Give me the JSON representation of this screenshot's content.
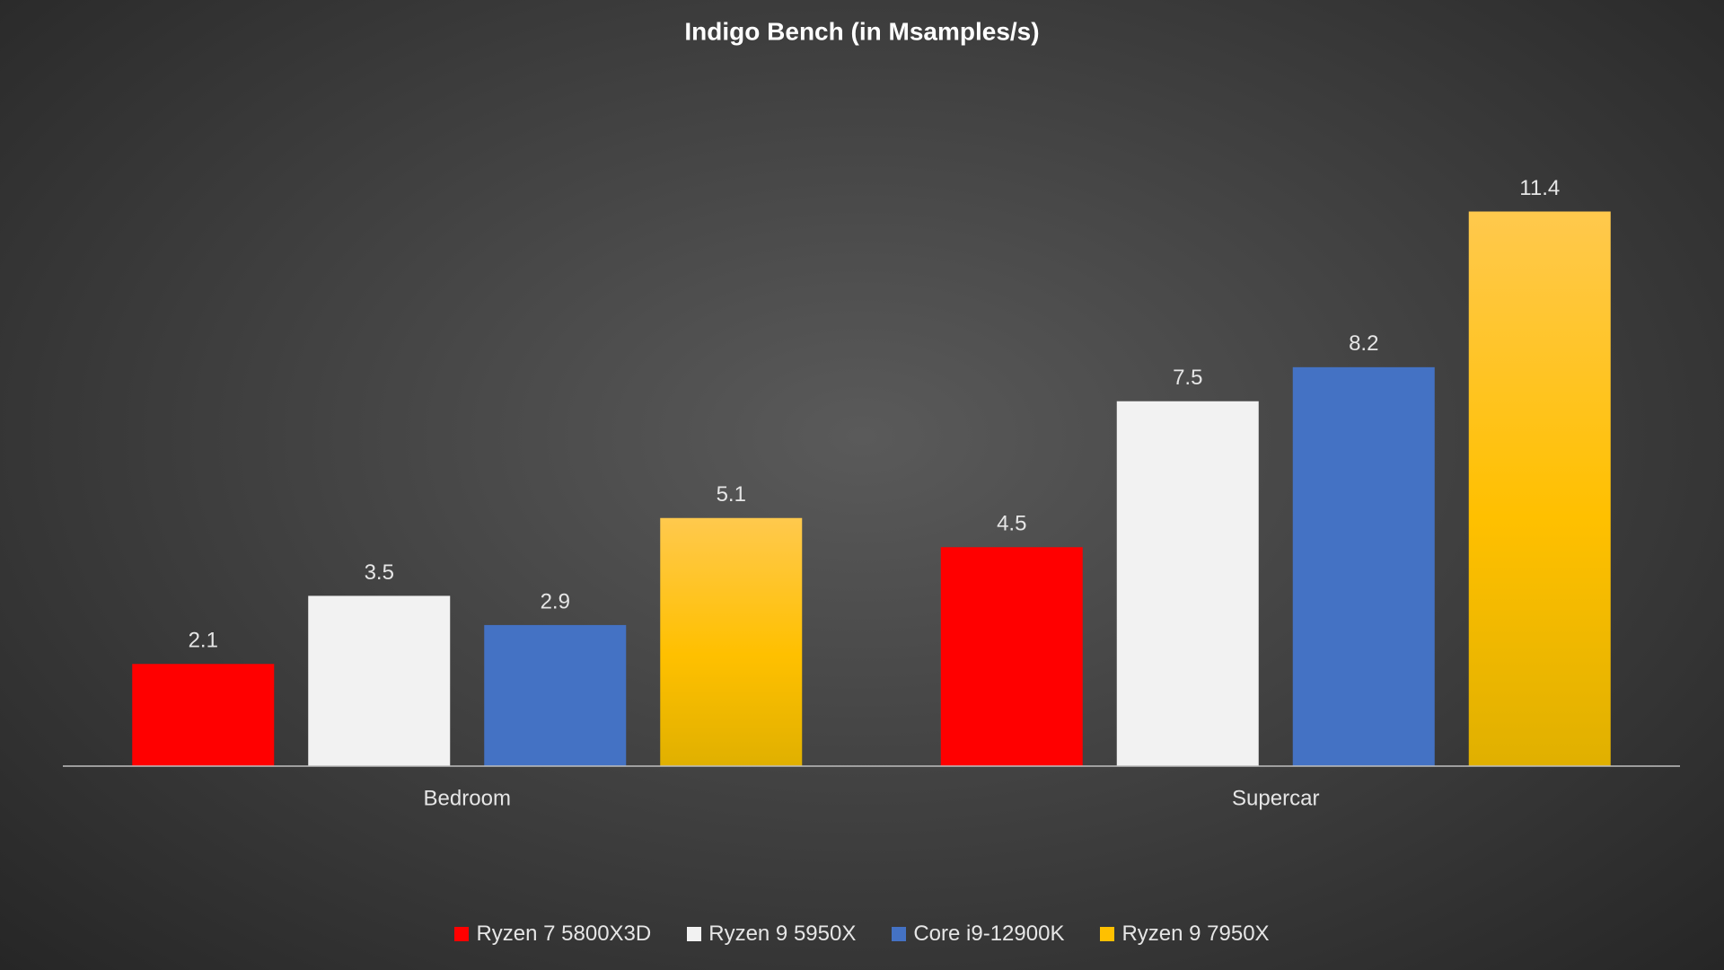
{
  "chart_data": {
    "type": "bar",
    "title": "Indigo Bench (in Msamples/s)",
    "categories": [
      "Bedroom",
      "Supercar"
    ],
    "series": [
      {
        "name": "Ryzen 7 5800X3D",
        "color": "#ff0000",
        "values": [
          2.1,
          4.5
        ]
      },
      {
        "name": "Ryzen 9 5950X",
        "color": "#f2f2f2",
        "values": [
          3.5,
          7.5
        ]
      },
      {
        "name": "Core i9-12900K",
        "color": "#4472c4",
        "values": [
          2.9,
          8.2
        ]
      },
      {
        "name": "Ryzen 9 7950X",
        "color": "#ffc000",
        "values": [
          5.1,
          11.4
        ]
      }
    ],
    "ylim": [
      0,
      12
    ],
    "legend": "bottom"
  }
}
